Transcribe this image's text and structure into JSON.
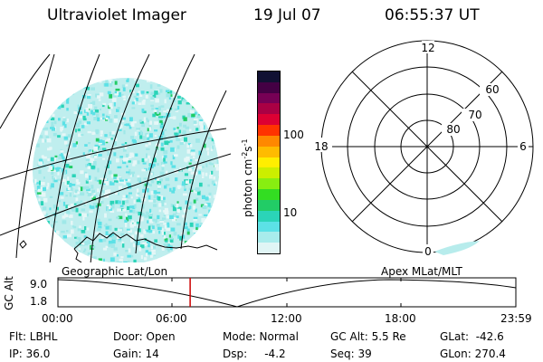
{
  "header": {
    "instrument": "Ultraviolet Imager",
    "date": "19 Jul 07",
    "time": "06:55:37 UT"
  },
  "colorbar": {
    "unit_prefix": "photon cm",
    "unit_exp1": "-2",
    "unit_mid": "s",
    "unit_exp2": "-1",
    "ticks": [
      "100",
      "10"
    ],
    "colors": [
      "#e0f5f5",
      "#a8ecec",
      "#5ce1e6",
      "#2bd4b8",
      "#22cc66",
      "#33dd22",
      "#88ee11",
      "#ccee00",
      "#ffee00",
      "#ffbb00",
      "#ff8800",
      "#ff3300",
      "#dd0033",
      "#aa0044",
      "#770055",
      "#440044",
      "#111133"
    ]
  },
  "polar_plot": {
    "mlt_labels": [
      "12",
      "18",
      "6",
      "0"
    ],
    "lat_labels": [
      "60",
      "70",
      "80"
    ]
  },
  "mid_labels": {
    "left": "Geographic Lat/Lon",
    "right": "Apex  MLat/MLT"
  },
  "altitude_plot": {
    "ylabel": "GC Alt",
    "yticks": [
      "9.0",
      "1.8"
    ],
    "xticks": [
      "00:00",
      "06:00",
      "12:00",
      "18:00",
      "23:59"
    ],
    "current_time_hours": 6.93
  },
  "footer": {
    "filter": "Flt: LBHL",
    "ip": "IP: 36.0",
    "door": "Door: Open",
    "gain": "Gain: 14",
    "mode": "Mode: Normal",
    "dsp": "Dsp:     -4.2",
    "gc_alt": "GC Alt: 5.5 Re",
    "seq": "Seq: 39",
    "glat": "GLat:  -42.6",
    "glon": "GLon: 270.4"
  },
  "colors": {
    "marker_line": "#cc0000",
    "foreground": "#000000"
  }
}
